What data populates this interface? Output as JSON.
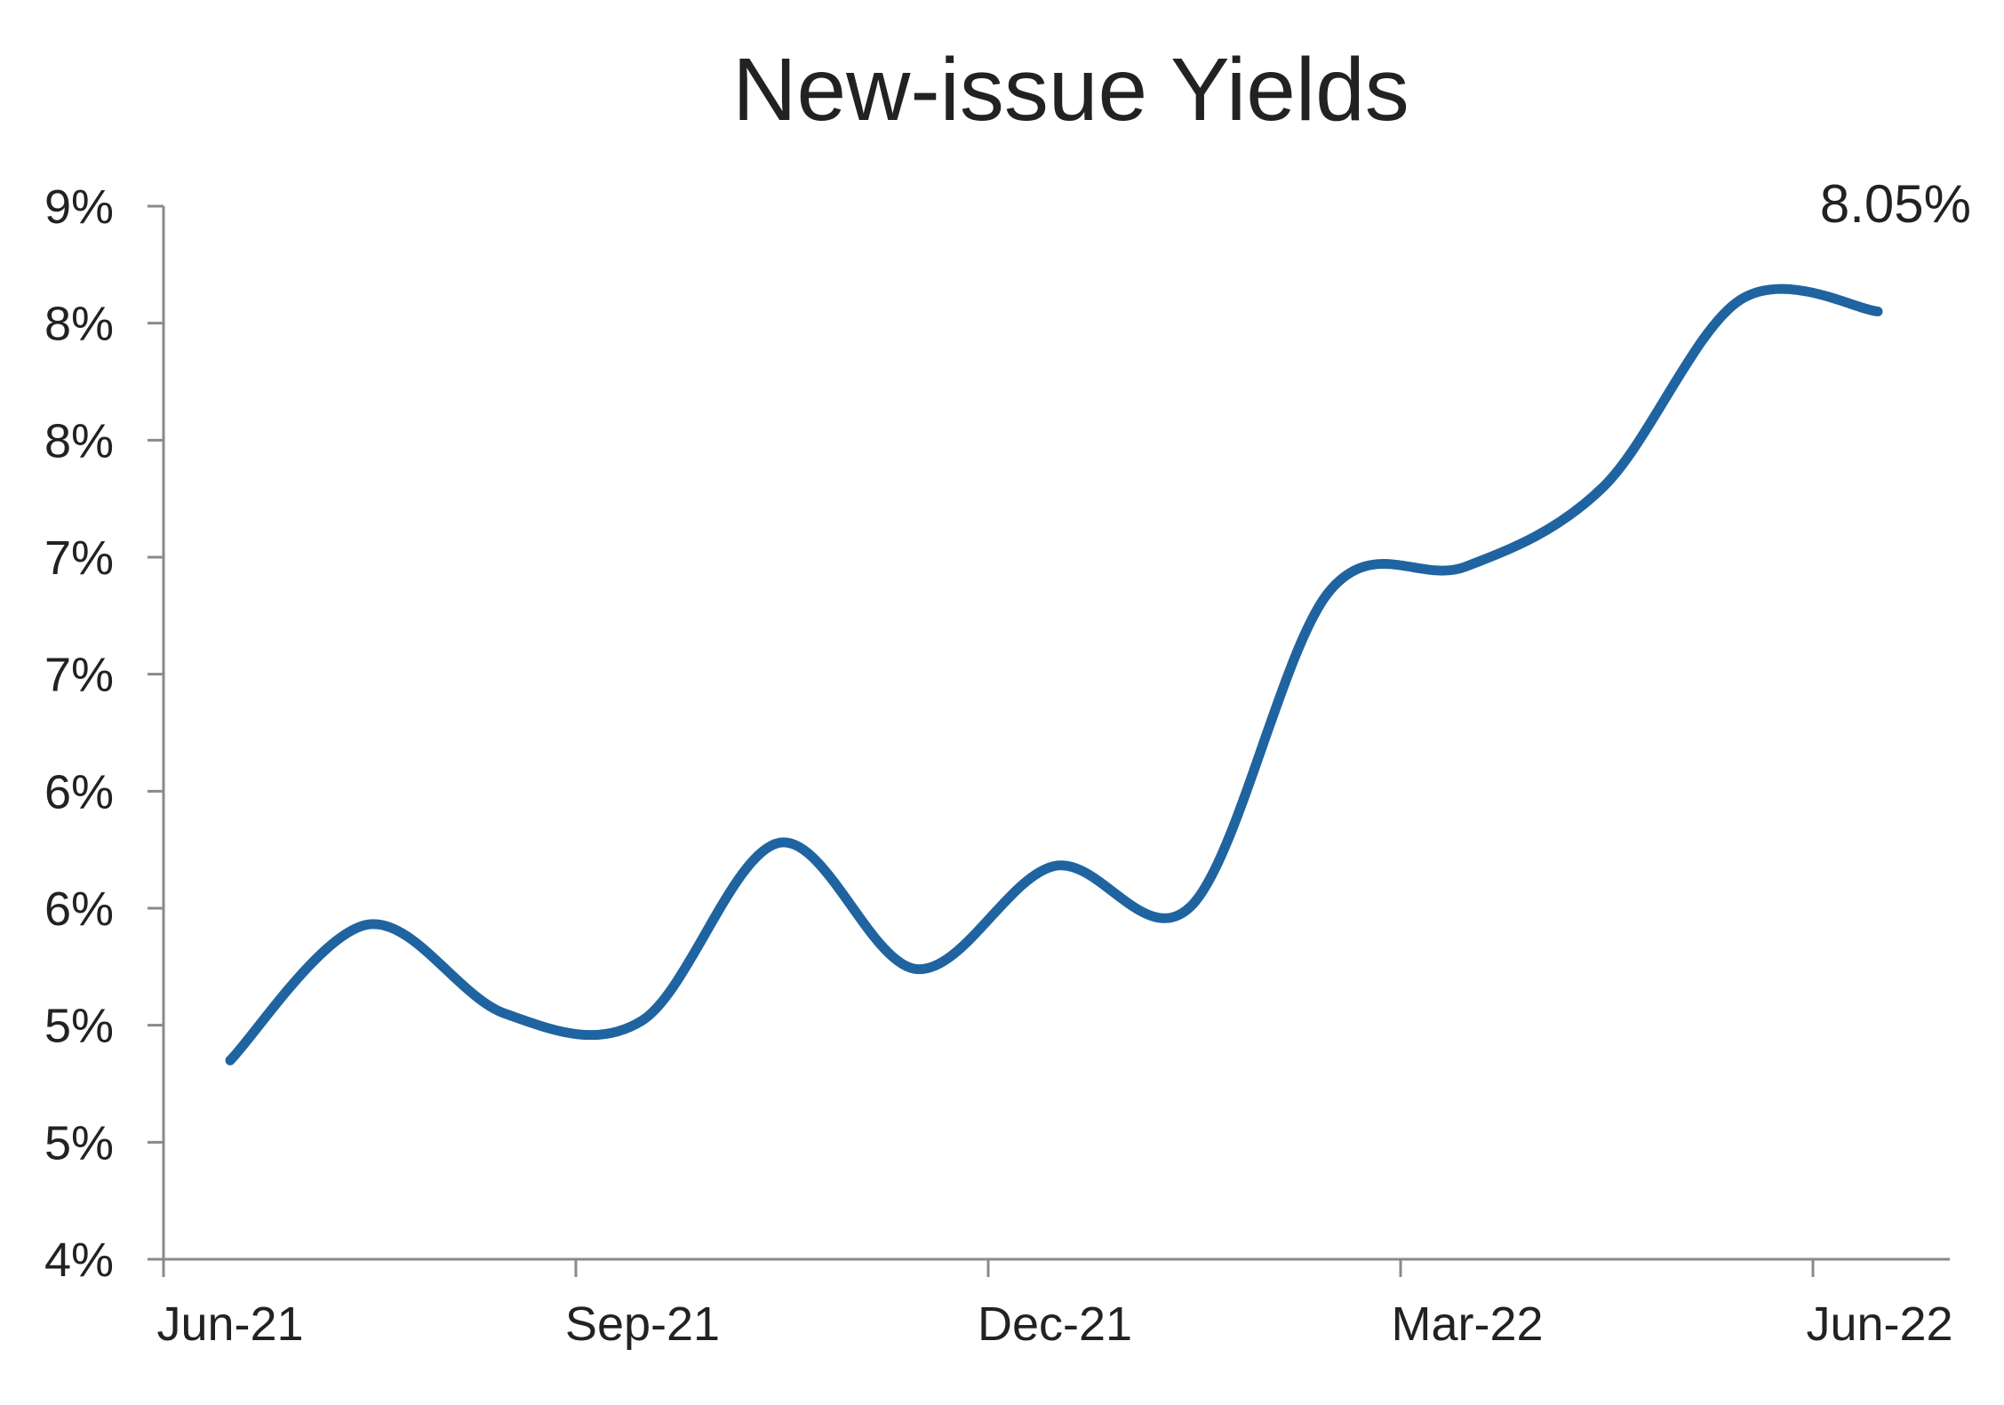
{
  "chart_data": {
    "type": "line",
    "title": "New-issue Yields",
    "xlabel": "",
    "ylabel": "",
    "x_tick_labels": [
      "Jun-21",
      "Sep-21",
      "Dec-21",
      "Mar-22",
      "Jun-22"
    ],
    "y_tick_labels": [
      "4%",
      "5%",
      "5%",
      "6%",
      "6%",
      "7%",
      "7%",
      "8%",
      "8%",
      "9%"
    ],
    "ylim": [
      4.0,
      8.5
    ],
    "y_ticks": [
      4.0,
      4.5,
      5.0,
      5.5,
      6.0,
      6.5,
      7.0,
      7.5,
      8.0,
      8.5
    ],
    "x": [
      "2021-06",
      "2021-07",
      "2021-08",
      "2021-09",
      "2021-10",
      "2021-11",
      "2021-12",
      "2022-01",
      "2022-02",
      "2022-03",
      "2022-04",
      "2022-05",
      "2022-06"
    ],
    "series": [
      {
        "values": [
          4.85,
          5.43,
          5.05,
          5.02,
          5.78,
          5.24,
          5.68,
          5.51,
          6.85,
          6.96,
          7.3,
          8.1,
          8.05
        ]
      }
    ],
    "end_label": "8.05%",
    "grid": false,
    "legend": "none",
    "colors": {
      "line": "#1f64a0",
      "axis": "#8a8a8a",
      "text": "#222222"
    }
  }
}
